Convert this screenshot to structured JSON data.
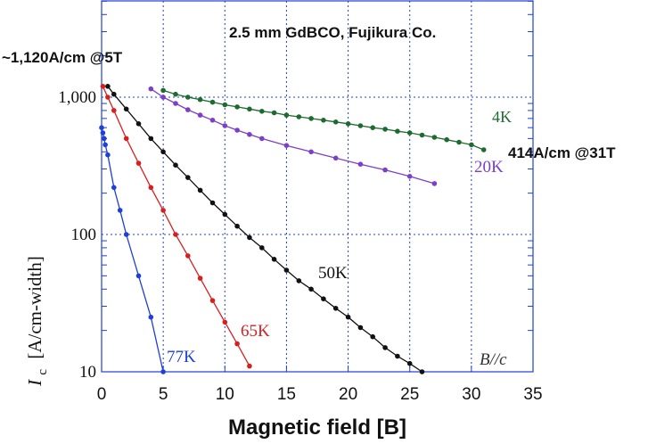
{
  "chart_data": {
    "type": "line",
    "title": "2.5 mm GdBCO, Fujikura Co.",
    "xlabel": "Magnetic field  [B]",
    "ylabel_main": "I",
    "ylabel_sub": "c",
    "ylabel_unit": "[A/cm-width]",
    "xlim": [
      0,
      35
    ],
    "ylim": [
      10,
      2000
    ],
    "y_scale": "log",
    "grid": true,
    "x_ticks": [
      0,
      5,
      10,
      15,
      20,
      25,
      30,
      35
    ],
    "x_tick_labels": [
      "0",
      "5",
      "10",
      "15",
      "20",
      "25",
      "30",
      "35"
    ],
    "y_ticks": [
      10,
      100,
      1000
    ],
    "y_tick_labels": [
      "10",
      "100",
      "1,000"
    ],
    "annotations": {
      "top_left": "~1,120A/cm @5T",
      "right": "414A/cm @31T",
      "field_orientation": "B//c"
    },
    "series": [
      {
        "label": "4K",
        "color": "#1e6b2e",
        "points": [
          [
            5,
            1120
          ],
          [
            6,
            1050
          ],
          [
            7,
            1000
          ],
          [
            8,
            960
          ],
          [
            9,
            920
          ],
          [
            10,
            880
          ],
          [
            11,
            850
          ],
          [
            12,
            820
          ],
          [
            13,
            790
          ],
          [
            14,
            770
          ],
          [
            15,
            740
          ],
          [
            16,
            720
          ],
          [
            17,
            700
          ],
          [
            18,
            680
          ],
          [
            19,
            660
          ],
          [
            20,
            640
          ],
          [
            21,
            620
          ],
          [
            22,
            600
          ],
          [
            23,
            585
          ],
          [
            24,
            565
          ],
          [
            25,
            550
          ],
          [
            26,
            530
          ],
          [
            27,
            510
          ],
          [
            28,
            490
          ],
          [
            29,
            470
          ],
          [
            30,
            450
          ],
          [
            31,
            414
          ]
        ]
      },
      {
        "label": "20K",
        "color": "#7b3fc8",
        "points": [
          [
            4,
            1150
          ],
          [
            5,
            1000
          ],
          [
            6,
            900
          ],
          [
            7,
            810
          ],
          [
            8,
            740
          ],
          [
            9,
            680
          ],
          [
            10,
            620
          ],
          [
            11,
            575
          ],
          [
            12,
            535
          ],
          [
            13,
            500
          ],
          [
            15,
            445
          ],
          [
            17,
            400
          ],
          [
            19,
            360
          ],
          [
            21,
            325
          ],
          [
            23,
            295
          ],
          [
            25,
            265
          ],
          [
            27,
            235
          ]
        ]
      },
      {
        "label": "50K",
        "color": "#111111",
        "points": [
          [
            0.5,
            1200
          ],
          [
            1,
            1050
          ],
          [
            2,
            820
          ],
          [
            3,
            640
          ],
          [
            4,
            500
          ],
          [
            5,
            400
          ],
          [
            6,
            320
          ],
          [
            7,
            260
          ],
          [
            8,
            210
          ],
          [
            9,
            170
          ],
          [
            10,
            140
          ],
          [
            11,
            115
          ],
          [
            12,
            95
          ],
          [
            13,
            80
          ],
          [
            14,
            66
          ],
          [
            15,
            55
          ],
          [
            16,
            46
          ],
          [
            17,
            40
          ],
          [
            18,
            34
          ],
          [
            19,
            29
          ],
          [
            20,
            25
          ],
          [
            21,
            21
          ],
          [
            22,
            18
          ],
          [
            23,
            15
          ],
          [
            24,
            13
          ],
          [
            25,
            11.5
          ],
          [
            26,
            10
          ]
        ]
      },
      {
        "label": "65K",
        "color": "#d62020",
        "points": [
          [
            0.1,
            1200
          ],
          [
            0.5,
            1000
          ],
          [
            1,
            800
          ],
          [
            2,
            500
          ],
          [
            3,
            330
          ],
          [
            4,
            220
          ],
          [
            5,
            150
          ],
          [
            6,
            100
          ],
          [
            7,
            70
          ],
          [
            8,
            48
          ],
          [
            9,
            33
          ],
          [
            10,
            23
          ],
          [
            11,
            16
          ],
          [
            12,
            11
          ]
        ]
      },
      {
        "label": "77K",
        "color": "#1f3fd6",
        "points": [
          [
            0,
            600
          ],
          [
            0.1,
            550
          ],
          [
            0.2,
            500
          ],
          [
            0.3,
            450
          ],
          [
            0.5,
            380
          ],
          [
            1,
            220
          ],
          [
            1.5,
            150
          ],
          [
            2,
            100
          ],
          [
            3,
            50
          ],
          [
            4,
            25
          ],
          [
            5,
            10
          ]
        ]
      }
    ]
  }
}
